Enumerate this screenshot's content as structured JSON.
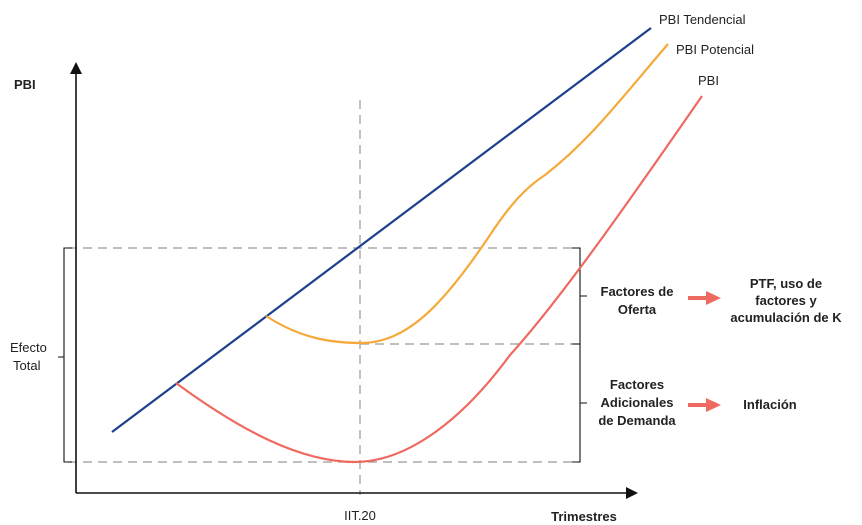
{
  "axes": {
    "y_label": "PBI",
    "x_label": "Trimestres",
    "x_tick": "IIT.20"
  },
  "curves": {
    "tendencial": {
      "label": "PBI Tendencial",
      "color": "#1c3f8f"
    },
    "potencial": {
      "label": "PBI Potencial",
      "color": "#f5a93a"
    },
    "pbi": {
      "label": "PBI",
      "color": "#ee6a60"
    }
  },
  "efecto_total": {
    "line1": "Efecto",
    "line2": "Total"
  },
  "oferta": {
    "label": [
      "Factores de",
      "Oferta"
    ],
    "result": [
      "PTF, uso de",
      "factores  y",
      "acumulación de K"
    ]
  },
  "demanda": {
    "label": [
      "Factores",
      "Adicionales",
      "de Demanda"
    ],
    "result": "Inflación"
  },
  "colors": {
    "axis": "#111111",
    "dashed": "#999999",
    "arrow": "#ee6a60"
  }
}
